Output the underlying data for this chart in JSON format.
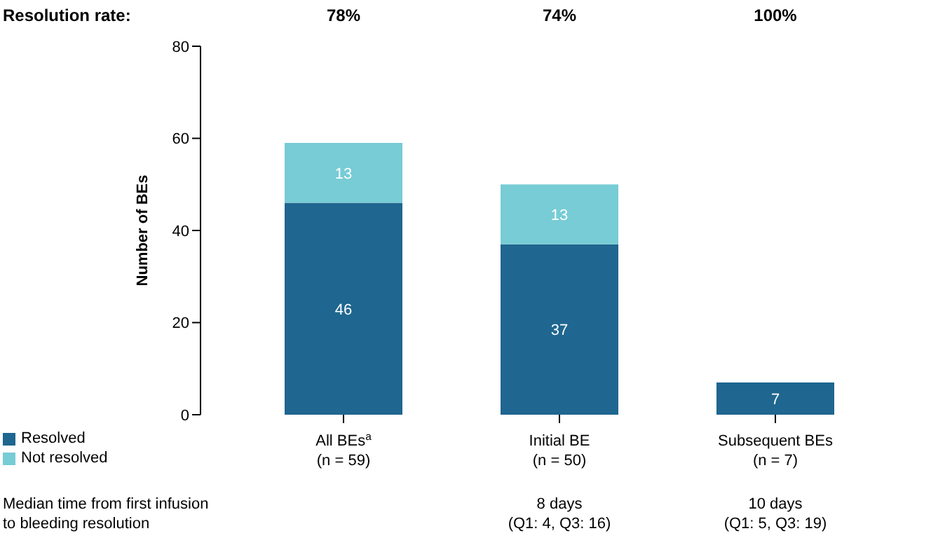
{
  "chart_data": {
    "type": "bar",
    "stacked": true,
    "ylabel": "Number of BEs",
    "categories": [
      "All BEs$^{a}$\n(n = 59)",
      "Initial BE\n(n = 50)",
      "Subsequent BEs\n(n = 7)"
    ],
    "series": [
      {
        "name": "Resolved",
        "color": "#1f6690",
        "values": [
          46,
          37,
          7
        ]
      },
      {
        "name": "Not resolved",
        "color": "#77ccd6",
        "values": [
          13,
          13,
          null
        ]
      }
    ],
    "ylim": [
      0,
      80
    ],
    "yticks": [
      0,
      20,
      40,
      60,
      80
    ],
    "data_labels": true,
    "grid": false,
    "legend": "bottom left",
    "annotations": [
      "Resolution rate:",
      "78%",
      "74%",
      "100%",
      "Median time from first infusion\nto bleeding resolution",
      null,
      "8 days\n(Q1: 4, Q3: 16)",
      "10 days\n(Q1: 5, Q3: 19)"
    ]
  }
}
